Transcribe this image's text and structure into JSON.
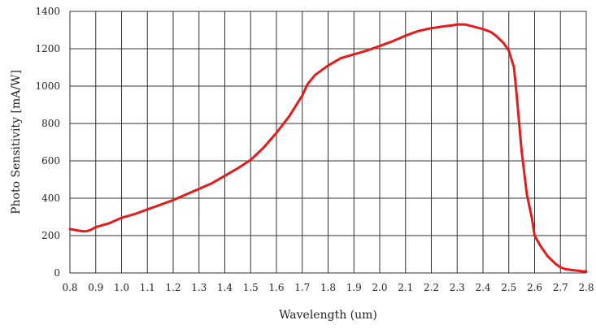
{
  "chart_data": {
    "type": "line",
    "title": "",
    "xlabel": "Wavelength (um)",
    "ylabel": "Photo Sensitivity [mA/W]",
    "xlim": [
      0.8,
      2.8
    ],
    "ylim": [
      0,
      1400
    ],
    "x_ticks": [
      "0.8",
      "0.9",
      "1.0",
      "1.1",
      "1.2",
      "1.3",
      "1.4",
      "1.5",
      "1.6",
      "1.7",
      "1.8",
      "1.9",
      "2.0",
      "2.1",
      "2.2",
      "2.3",
      "2.4",
      "2.5",
      "2.6",
      "2.7",
      "2.8"
    ],
    "y_ticks": [
      "0",
      "200",
      "400",
      "600",
      "800",
      "1000",
      "1200",
      "1400"
    ],
    "grid": true,
    "legend": "none",
    "line_color": "#e31b1b",
    "grid_color": "#333333",
    "series": [
      {
        "x": [
          0.8,
          0.82,
          0.84,
          0.86,
          0.88,
          0.9,
          0.95,
          1.0,
          1.05,
          1.1,
          1.15,
          1.2,
          1.25,
          1.3,
          1.35,
          1.4,
          1.45,
          1.5,
          1.55,
          1.6,
          1.65,
          1.7,
          1.72,
          1.75,
          1.78,
          1.8,
          1.85,
          1.9,
          1.95,
          2.0,
          2.05,
          2.1,
          2.15,
          2.2,
          2.25,
          2.28,
          2.3,
          2.33,
          2.36,
          2.4,
          2.43,
          2.45,
          2.48,
          2.5,
          2.52,
          2.53,
          2.55,
          2.57,
          2.59,
          2.6,
          2.62,
          2.65,
          2.68,
          2.7,
          2.72,
          2.75,
          2.78,
          2.8
        ],
        "y": [
          235,
          230,
          225,
          222,
          230,
          245,
          265,
          295,
          315,
          340,
          365,
          390,
          420,
          450,
          480,
          520,
          560,
          605,
          670,
          750,
          840,
          950,
          1010,
          1060,
          1090,
          1110,
          1150,
          1170,
          1190,
          1215,
          1240,
          1270,
          1295,
          1310,
          1320,
          1325,
          1330,
          1330,
          1320,
          1305,
          1290,
          1270,
          1230,
          1190,
          1100,
          960,
          650,
          420,
          290,
          200,
          150,
          90,
          50,
          30,
          20,
          15,
          10,
          8
        ]
      }
    ]
  }
}
